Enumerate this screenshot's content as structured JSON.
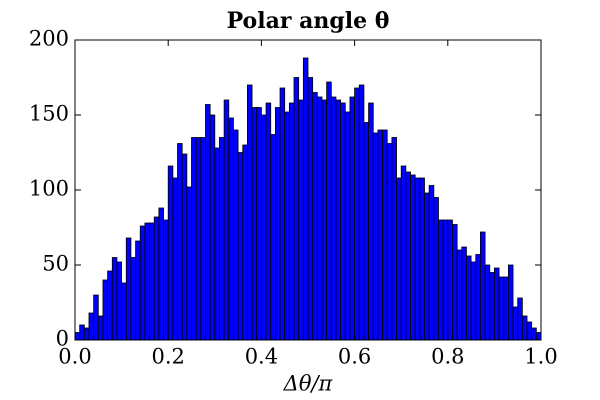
{
  "chart_data": {
    "type": "histogram",
    "title": "Polar angle θ",
    "xlabel": "Δθ/π",
    "color": "#0000ff",
    "edgecolor": "#000000",
    "bins": [
      0,
      0.01,
      0.02,
      0.03,
      0.04,
      0.05,
      0.06,
      0.07,
      0.08,
      0.09,
      0.1,
      0.11,
      0.12,
      0.13,
      0.14,
      0.15,
      0.16,
      0.17,
      0.18,
      0.19,
      0.2,
      0.21,
      0.22,
      0.23,
      0.24,
      0.25,
      0.26,
      0.27,
      0.28,
      0.29,
      0.3,
      0.31,
      0.32,
      0.33,
      0.34,
      0.35,
      0.36,
      0.37,
      0.38,
      0.39,
      0.4,
      0.41,
      0.42,
      0.43,
      0.44,
      0.45,
      0.46,
      0.47,
      0.48,
      0.49,
      0.5,
      0.51,
      0.52,
      0.53,
      0.54,
      0.55,
      0.56,
      0.57,
      0.58,
      0.59,
      0.6,
      0.61,
      0.62,
      0.63,
      0.64,
      0.65,
      0.66,
      0.67,
      0.68,
      0.69,
      0.7,
      0.71,
      0.72,
      0.73,
      0.74,
      0.75,
      0.76,
      0.77,
      0.78,
      0.79,
      0.8,
      0.81,
      0.82,
      0.83,
      0.84,
      0.85,
      0.86,
      0.87,
      0.88,
      0.89,
      0.9,
      0.91,
      0.92,
      0.93,
      0.94,
      0.95,
      0.96,
      0.97,
      0.98,
      0.99,
      1
    ],
    "values": [
      5,
      10,
      8,
      18,
      30,
      16,
      40,
      46,
      55,
      52,
      38,
      68,
      55,
      66,
      76,
      78,
      78,
      82,
      88,
      80,
      116,
      108,
      131,
      124,
      102,
      135,
      135,
      135,
      157,
      150,
      128,
      135,
      160,
      148,
      140,
      125,
      130,
      170,
      155,
      155,
      150,
      158,
      137,
      155,
      168,
      152,
      158,
      175,
      160,
      188,
      175,
      165,
      162,
      160,
      172,
      162,
      160,
      158,
      152,
      162,
      168,
      170,
      145,
      158,
      138,
      140,
      140,
      131,
      135,
      108,
      116,
      112,
      110,
      108,
      108,
      98,
      103,
      95,
      80,
      80,
      80,
      77,
      60,
      62,
      56,
      52,
      57,
      72,
      50,
      45,
      48,
      42,
      42,
      50,
      22,
      28,
      16,
      12,
      8,
      5
    ],
    "xlim": [
      0,
      1
    ],
    "ylim": [
      0,
      200
    ],
    "xticks": [
      {
        "value": 0,
        "label": "0.0"
      },
      0.2,
      0.4,
      0.6,
      0.8,
      {
        "value": 1,
        "label": "1.0"
      }
    ],
    "yticks": [
      0,
      50,
      100,
      150,
      200
    ]
  }
}
